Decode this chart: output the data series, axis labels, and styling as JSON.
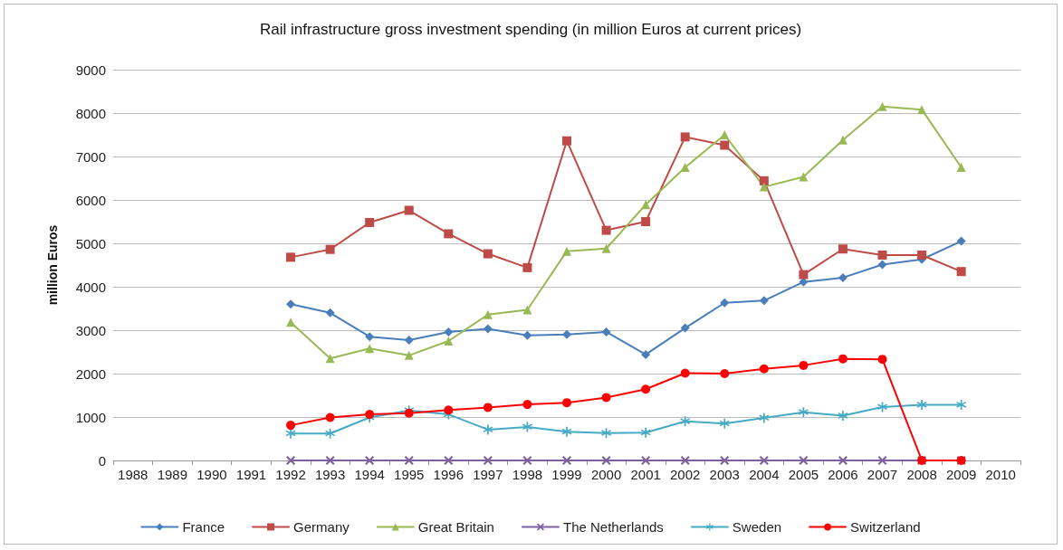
{
  "chart_data": {
    "type": "line",
    "title": "Rail infrastructure gross investment spending (in million Euros at current prices)",
    "ylabel": "million Euros",
    "categories": [
      "1988",
      "1989",
      "1990",
      "1991",
      "1992",
      "1993",
      "1994",
      "1995",
      "1996",
      "1997",
      "1998",
      "1999",
      "2000",
      "2001",
      "2002",
      "2003",
      "2004",
      "2005",
      "2006",
      "2007",
      "2008",
      "2009",
      "2010"
    ],
    "series": [
      {
        "name": "France",
        "color": "#4a7ebb",
        "marker": "diamond",
        "values": [
          null,
          null,
          null,
          null,
          3600,
          3400,
          2850,
          2770,
          2960,
          3030,
          2880,
          2900,
          2960,
          2440,
          3050,
          3630,
          3680,
          4110,
          4210,
          4510,
          4630,
          5050,
          null
        ]
      },
      {
        "name": "Germany",
        "color": "#be4b48",
        "marker": "square",
        "values": [
          null,
          null,
          null,
          null,
          4680,
          4860,
          5480,
          5760,
          5220,
          4760,
          4440,
          7360,
          5300,
          5500,
          7450,
          7260,
          6440,
          4280,
          4870,
          4730,
          4730,
          4350,
          null
        ]
      },
      {
        "name": "Great Britain",
        "color": "#98b954",
        "marker": "triangle",
        "values": [
          null,
          null,
          null,
          null,
          3180,
          2350,
          2580,
          2420,
          2750,
          3360,
          3470,
          4820,
          4880,
          5890,
          6750,
          7500,
          6300,
          6530,
          7380,
          8150,
          8080,
          6750,
          null
        ]
      },
      {
        "name": "The Netherlands",
        "color": "#7d60a0",
        "marker": "cross",
        "values": [
          null,
          null,
          null,
          null,
          0,
          0,
          0,
          0,
          0,
          0,
          0,
          0,
          0,
          0,
          0,
          0,
          0,
          0,
          0,
          0,
          0,
          0,
          null
        ]
      },
      {
        "name": "Sweden",
        "color": "#46aac5",
        "marker": "star",
        "values": [
          null,
          null,
          null,
          null,
          620,
          620,
          990,
          1150,
          1060,
          710,
          770,
          660,
          630,
          640,
          900,
          850,
          980,
          1110,
          1030,
          1230,
          1280,
          1280,
          null
        ]
      },
      {
        "name": "Switzerland",
        "color": "#ff0000",
        "marker": "circle",
        "values": [
          null,
          null,
          null,
          null,
          810,
          990,
          1060,
          1090,
          1160,
          1220,
          1290,
          1330,
          1450,
          1640,
          2010,
          2000,
          2110,
          2190,
          2340,
          2330,
          0,
          0,
          null
        ]
      }
    ],
    "ylim": [
      0,
      9000
    ],
    "yticks": [
      0,
      1000,
      2000,
      3000,
      4000,
      5000,
      6000,
      7000,
      8000,
      9000
    ],
    "grid": "y",
    "legend": "bottom"
  }
}
